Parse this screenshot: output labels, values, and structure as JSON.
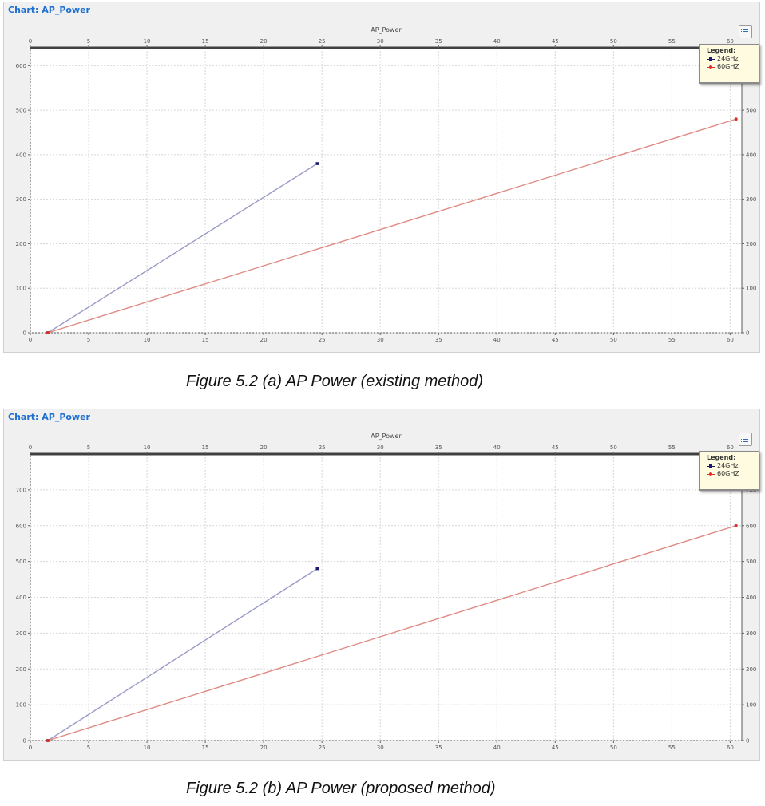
{
  "colors": {
    "series_24": "#1a1a6e",
    "series_60": "#d8322a",
    "line_24": "#9a9ac8",
    "line_60": "#e08a84",
    "title": "#1e6fcf"
  },
  "icons": {
    "options": "list-settings-icon"
  },
  "charts": [
    {
      "panel_title": "Chart: AP_Power",
      "caption": "Figure 5.2 (a) AP Power (existing method)",
      "legend_title": "Legend:",
      "chart_data": {
        "type": "line",
        "title": "AP_Power",
        "xlim": [
          0,
          61
        ],
        "ylim": [
          0,
          640
        ],
        "x_ticks": [
          0,
          5,
          10,
          15,
          20,
          25,
          30,
          35,
          40,
          45,
          50,
          55,
          60
        ],
        "y_ticks": [
          0,
          100,
          200,
          300,
          400,
          500,
          600
        ],
        "grid": true,
        "legend_position": "top-right",
        "series": [
          {
            "name": "24GHz",
            "color": "#1a1a6e",
            "x": [
              1.5,
              24.6
            ],
            "y": [
              0,
              380
            ]
          },
          {
            "name": "60GHZ",
            "color": "#d8322a",
            "x": [
              1.5,
              60.5
            ],
            "y": [
              0,
              480
            ]
          }
        ]
      }
    },
    {
      "panel_title": "Chart: AP_Power",
      "caption": "Figure 5.2 (b) AP Power (proposed method)",
      "legend_title": "Legend:",
      "chart_data": {
        "type": "line",
        "title": "AP_Power",
        "xlim": [
          0,
          61
        ],
        "ylim": [
          0,
          800
        ],
        "x_ticks": [
          0,
          5,
          10,
          15,
          20,
          25,
          30,
          35,
          40,
          45,
          50,
          55,
          60
        ],
        "y_ticks": [
          0,
          100,
          200,
          300,
          400,
          500,
          600,
          700
        ],
        "grid": true,
        "legend_position": "top-right",
        "series": [
          {
            "name": "24GHz",
            "color": "#1a1a6e",
            "x": [
              1.5,
              24.6
            ],
            "y": [
              0,
              480
            ]
          },
          {
            "name": "60GHZ",
            "color": "#d8322a",
            "x": [
              1.5,
              60.5
            ],
            "y": [
              0,
              600
            ]
          }
        ]
      }
    }
  ]
}
